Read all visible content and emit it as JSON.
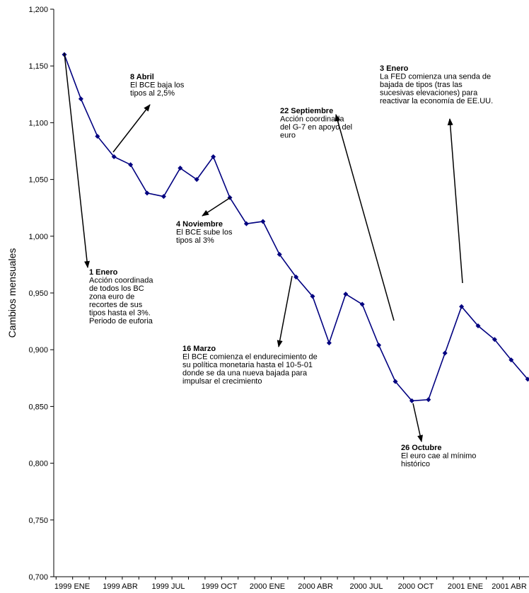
{
  "chart_data": {
    "type": "line",
    "title": "",
    "xlabel": "",
    "ylabel": "Cambios mensuales",
    "ylim": [
      0.7,
      1.2
    ],
    "yticks": [
      "1,200",
      "1,150",
      "1,100",
      "1,050",
      "1,000",
      "0,950",
      "0,900",
      "0,850",
      "0,800",
      "0,750",
      "0,700"
    ],
    "ytick_values": [
      1.2,
      1.15,
      1.1,
      1.05,
      1.0,
      0.95,
      0.9,
      0.85,
      0.8,
      0.75,
      0.7
    ],
    "xticks": [
      "1999 ENE",
      "1999 ABR",
      "1999 JUL",
      "1999 OCT",
      "2000 ENE",
      "2000 ABR",
      "2000 JUL",
      "2000 OCT",
      "2001 ENE",
      "2001 ABR"
    ],
    "grid": false,
    "color": "#000080",
    "series": [
      {
        "values": [
          1.16,
          1.121,
          1.088,
          1.07,
          1.063,
          1.038,
          1.035,
          1.06,
          1.05,
          1.07,
          1.034,
          1.011,
          1.013,
          0.984,
          0.964,
          0.947,
          0.906,
          0.949,
          0.94,
          0.904,
          0.872,
          0.855,
          0.856,
          0.897,
          0.938,
          0.921,
          0.909,
          0.891,
          0.874
        ]
      }
    ],
    "annotations": [
      {
        "title": "8 Abril",
        "lines": [
          "El BCE baja los",
          "tipos al 2,5%"
        ]
      },
      {
        "title": "1  Enero",
        "lines": [
          "Acción coordinada",
          "de todos los BC",
          "zona euro de",
          "recortes de sus",
          "tipos hasta el 3%.",
          "Periodo de euforia"
        ]
      },
      {
        "title": "4 Noviembre",
        "lines": [
          "El BCE sube los",
          "tipos al 3%"
        ]
      },
      {
        "title": "16 Marzo",
        "lines": [
          "El BCE comienza  el endurecimiento de",
          "su política monetaria hasta el 10-5-01",
          "donde se da una nueva bajada para",
          "impulsar el crecimiento"
        ]
      },
      {
        "title": "22 Septiembre",
        "lines": [
          "Acción coordinada",
          "del G-7 en apoyo del",
          "euro"
        ]
      },
      {
        "title": "3 Enero",
        "lines": [
          "La FED comienza una senda de",
          "bajada de tipos  (tras las",
          "sucesivas elevaciones) para",
          "reactivar la economía de EE.UU."
        ]
      },
      {
        "title": "26 Octubre",
        "lines": [
          "El euro cae al mínimo",
          "histórico"
        ]
      }
    ]
  }
}
